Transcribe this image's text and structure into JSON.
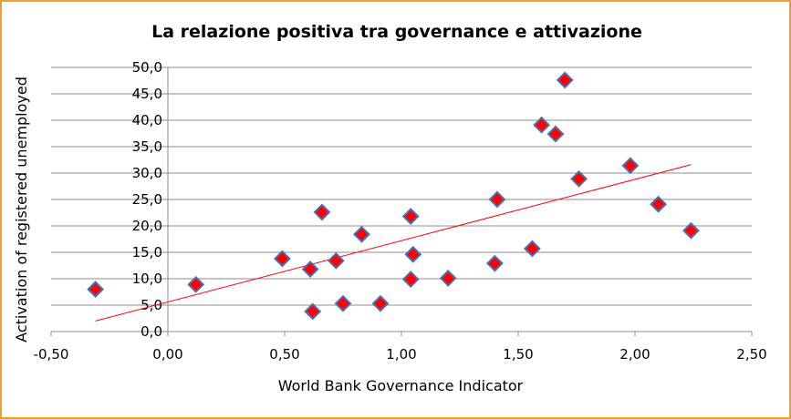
{
  "chart_data": {
    "type": "scatter",
    "title": "La relazione positiva tra governance e attivazione",
    "xlabel": "World Bank Governance Indicator",
    "ylabel": "Activation of registered unemployed",
    "xlim": [
      -0.5,
      2.5
    ],
    "ylim": [
      0,
      50
    ],
    "x_ticks": [
      "-0,50",
      "0,00",
      "0,50",
      "1,00",
      "1,50",
      "2,00",
      "2,50"
    ],
    "y_ticks": [
      "0,0",
      "5,0",
      "10,0",
      "15,0",
      "20,0",
      "25,0",
      "30,0",
      "35,0",
      "40,0",
      "45,0",
      "50,0"
    ],
    "grid": "horizontal",
    "marker": "diamond",
    "colors": {
      "marker_fill": "#ff0000",
      "marker_edge": "#4a6fb5",
      "trendline": "#ff0000",
      "border": "#f0a030",
      "grid": "#8c8c8c"
    },
    "points": [
      {
        "x": -0.31,
        "y": 8.0
      },
      {
        "x": 0.12,
        "y": 8.9
      },
      {
        "x": 0.49,
        "y": 13.8
      },
      {
        "x": 0.61,
        "y": 11.8
      },
      {
        "x": 0.62,
        "y": 3.8
      },
      {
        "x": 0.66,
        "y": 22.6
      },
      {
        "x": 0.72,
        "y": 13.4
      },
      {
        "x": 0.75,
        "y": 5.3
      },
      {
        "x": 0.83,
        "y": 18.4
      },
      {
        "x": 0.91,
        "y": 5.3
      },
      {
        "x": 1.04,
        "y": 21.8
      },
      {
        "x": 1.05,
        "y": 14.6
      },
      {
        "x": 1.04,
        "y": 9.9
      },
      {
        "x": 1.2,
        "y": 10.1
      },
      {
        "x": 1.4,
        "y": 12.9
      },
      {
        "x": 1.41,
        "y": 25.0
      },
      {
        "x": 1.56,
        "y": 15.7
      },
      {
        "x": 1.6,
        "y": 39.1
      },
      {
        "x": 1.66,
        "y": 37.4
      },
      {
        "x": 1.7,
        "y": 47.6
      },
      {
        "x": 1.76,
        "y": 28.9
      },
      {
        "x": 1.98,
        "y": 31.4
      },
      {
        "x": 2.1,
        "y": 24.1
      },
      {
        "x": 2.24,
        "y": 19.1
      }
    ],
    "trendline": {
      "x": [
        -0.31,
        2.24
      ],
      "y": [
        2.0,
        31.6
      ]
    }
  }
}
